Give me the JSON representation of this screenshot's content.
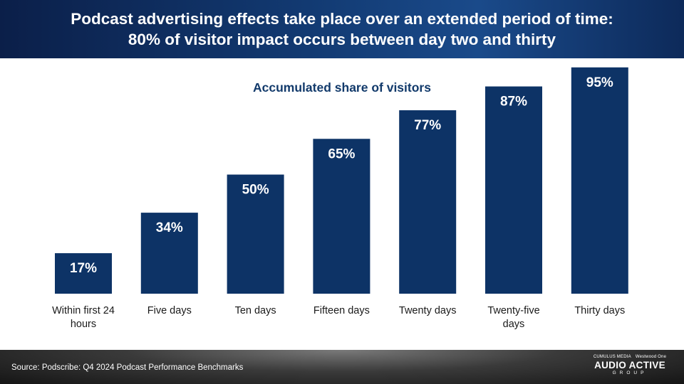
{
  "header": {
    "title_line1": "Podcast advertising effects take place over an extended period of time:",
    "title_line2": "80% of visitor impact occurs between day two and thirty"
  },
  "chart_data": {
    "type": "bar",
    "title": "Accumulated share of visitors",
    "categories": [
      "Within first 24 hours",
      "Five days",
      "Ten days",
      "Fifteen days",
      "Twenty days",
      "Twenty-five days",
      "Thirty days"
    ],
    "category_lines": [
      [
        "Within first 24",
        "hours"
      ],
      [
        "Five days"
      ],
      [
        "Ten days"
      ],
      [
        "Fifteen days"
      ],
      [
        "Twenty days"
      ],
      [
        "Twenty-five",
        "days"
      ],
      [
        "Thirty days"
      ]
    ],
    "values": [
      17,
      34,
      50,
      65,
      77,
      87,
      95
    ],
    "value_labels": [
      "17%",
      "34%",
      "50%",
      "65%",
      "77%",
      "87%",
      "95%"
    ],
    "unit": "%",
    "ylim": [
      0,
      100
    ],
    "grid": false,
    "legend": "none",
    "bar_color": "#0d3366"
  },
  "footer": {
    "source": "Source: Podscribe: Q4 2024 Podcast Performance Benchmarks",
    "logo": {
      "top_left": "CUMULUS MEDIA",
      "top_right": "Westwood One",
      "main": "AUDIO ACTIVE",
      "sub": "GROUP"
    }
  }
}
